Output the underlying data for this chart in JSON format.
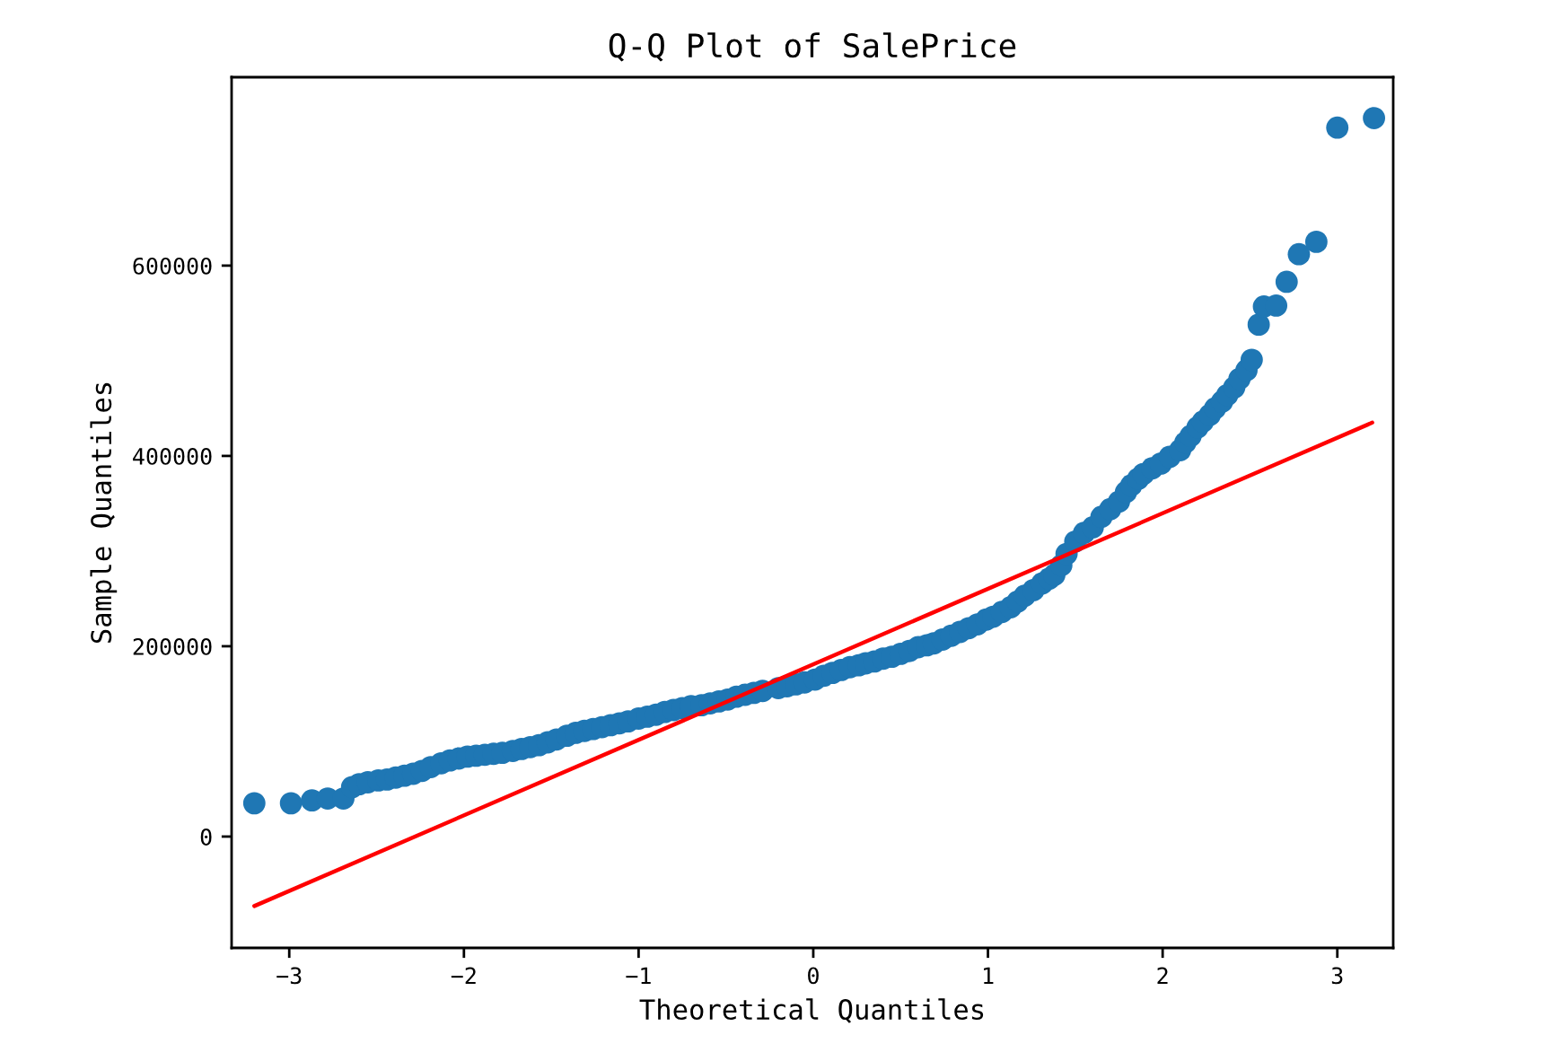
{
  "chart_data": {
    "type": "scatter",
    "title": "Q-Q Plot of SalePrice",
    "xlabel": "Theoretical Quantiles",
    "ylabel": "Sample Quantiles",
    "xlim": [
      -3.33,
      3.32
    ],
    "ylim": [
      -117000,
      798000
    ],
    "xticks": [
      -3,
      -2,
      -1,
      0,
      1,
      2,
      3
    ],
    "yticks": [
      0,
      200000,
      400000,
      600000
    ],
    "series": [
      {
        "color": "#1f77b4",
        "marker": "circle",
        "x": [
          -3.2,
          -2.99,
          -2.87,
          -2.78,
          -2.69,
          -2.64,
          -2.6,
          -2.55,
          -2.49,
          -2.44,
          -2.39,
          -2.34,
          -2.29,
          -2.24,
          -2.19,
          -2.13,
          -2.08,
          -2.03,
          -1.98,
          -1.93,
          -1.88,
          -1.83,
          -1.78,
          -1.72,
          -1.67,
          -1.62,
          -1.57,
          -1.52,
          -1.47,
          -1.41,
          -1.36,
          -1.31,
          -1.26,
          -1.21,
          -1.16,
          -1.11,
          -1.06,
          -1.0,
          -0.95,
          -0.9,
          -0.85,
          -0.8,
          -0.75,
          -0.7,
          -0.64,
          -0.59,
          -0.54,
          -0.49,
          -0.44,
          -0.39,
          -0.34,
          -0.29,
          -0.2,
          -0.15,
          -0.1,
          -0.05,
          0.01,
          0.06,
          0.11,
          0.16,
          0.21,
          0.26,
          0.3,
          0.35,
          0.4,
          0.45,
          0.5,
          0.55,
          0.6,
          0.65,
          0.69,
          0.74,
          0.79,
          0.84,
          0.89,
          0.94,
          0.99,
          1.03,
          1.08,
          1.13,
          1.17,
          1.21,
          1.26,
          1.31,
          1.35,
          1.38,
          1.42,
          1.45,
          1.5,
          1.55,
          1.6,
          1.65,
          1.7,
          1.75,
          1.79,
          1.82,
          1.86,
          1.89,
          1.94,
          1.99,
          2.04,
          2.1,
          2.13,
          2.16,
          2.2,
          2.23,
          2.27,
          2.3,
          2.34,
          2.37,
          2.41,
          2.44,
          2.48,
          2.51,
          2.55,
          2.58,
          2.65,
          2.71,
          2.78,
          2.88,
          3.0,
          3.21
        ],
        "values": [
          35000,
          35000,
          38000,
          40000,
          40000,
          52000,
          55000,
          57000,
          59000,
          60000,
          62000,
          64000,
          66000,
          69000,
          73000,
          77000,
          80000,
          82000,
          84000,
          85000,
          86000,
          87000,
          88000,
          90000,
          92000,
          94000,
          96000,
          99000,
          102000,
          106000,
          109000,
          111000,
          113000,
          115000,
          117000,
          119000,
          121000,
          124000,
          126000,
          128000,
          131000,
          133000,
          135000,
          137000,
          138000,
          140000,
          142000,
          144000,
          147000,
          149000,
          151000,
          153000,
          156000,
          158000,
          160000,
          162000,
          165000,
          169000,
          172000,
          175000,
          178000,
          180000,
          182000,
          184000,
          187000,
          189000,
          192000,
          195000,
          199000,
          201000,
          203000,
          207000,
          211000,
          215000,
          219000,
          223000,
          228000,
          231000,
          236000,
          241000,
          247000,
          253000,
          259000,
          266000,
          271000,
          275000,
          285000,
          297000,
          310000,
          319000,
          325000,
          336000,
          344000,
          352000,
          362000,
          369000,
          376000,
          381000,
          387000,
          392000,
          399000,
          406000,
          414000,
          421000,
          430000,
          436000,
          443000,
          450000,
          457000,
          464000,
          472000,
          481000,
          490000,
          501000,
          538000,
          557000,
          558000,
          583000,
          612000,
          625000,
          745000,
          755000
        ]
      },
      {
        "type": "line",
        "color": "#ff0000",
        "line_style": "solid",
        "x": [
          -3.2,
          3.2
        ],
        "values": [
          -73000,
          435000
        ]
      }
    ]
  }
}
